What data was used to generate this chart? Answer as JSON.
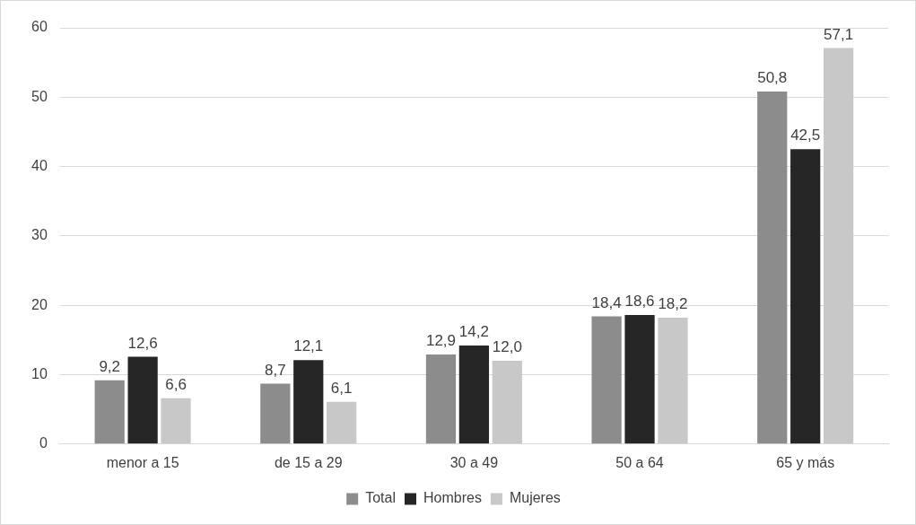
{
  "chart_data": {
    "type": "bar",
    "categories": [
      "menor a 15",
      "de 15 a 29",
      "30 a 49",
      "50 a 64",
      "65 y más"
    ],
    "series": [
      {
        "name": "Total",
        "color": "#8c8c8c",
        "values": [
          9.2,
          8.7,
          12.9,
          18.4,
          50.8
        ],
        "value_labels": [
          "9,2",
          "8,7",
          "12,9",
          "18,4",
          "50,8"
        ]
      },
      {
        "name": "Hombres",
        "color": "#262626",
        "values": [
          12.6,
          12.1,
          14.2,
          18.6,
          42.5
        ],
        "value_labels": [
          "12,6",
          "12,1",
          "14,2",
          "18,6",
          "42,5"
        ]
      },
      {
        "name": "Mujeres",
        "color": "#c8c8c8",
        "values": [
          6.6,
          6.1,
          12.0,
          18.2,
          57.1
        ],
        "value_labels": [
          "6,6",
          "6,1",
          "12,0",
          "18,2",
          "57,1"
        ]
      }
    ],
    "ylim": [
      0,
      60
    ],
    "yticks": [
      0,
      10,
      20,
      30,
      40,
      50,
      60
    ],
    "grid": "y",
    "legend": "bottom"
  }
}
